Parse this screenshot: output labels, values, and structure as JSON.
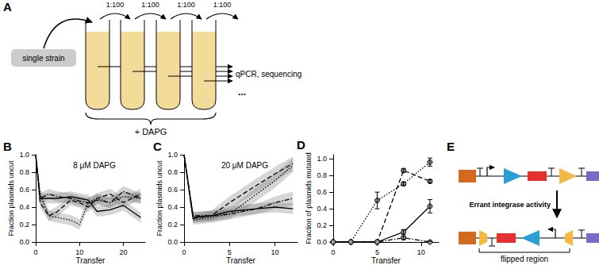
{
  "panel_labels": [
    "A",
    "B",
    "C",
    "D",
    "E"
  ],
  "diagram_a": {
    "start": "single strain",
    "dilution": "1:100",
    "ellipsis": "...",
    "readout": "qPCR, sequencing",
    "treatment": "+ DAPG"
  },
  "diagram_e": {
    "process": "Errant integrase activity",
    "region": "flipped region"
  },
  "chart_data": [
    {
      "type": "line",
      "title": "8 μM DAPG",
      "x_label": "Transfer",
      "y_label": "Fraction plasmids uncut",
      "xlim": [
        0,
        25
      ],
      "xticks": [
        0,
        10,
        20
      ],
      "ylim": [
        0,
        1
      ],
      "yticks": [
        {
          "value": 0,
          "label": "0.0"
        },
        0.2,
        0.4,
        0.6,
        0.8,
        {
          "value": 1,
          "label": "1.0"
        }
      ],
      "grid": false,
      "x": [
        0,
        1,
        3,
        5,
        8,
        10,
        12,
        14,
        17,
        20,
        24
      ],
      "series": [
        {
          "color": "#000000",
          "line_style": "solid",
          "values": [
            1.0,
            0.5,
            0.5,
            0.5,
            0.52,
            0.5,
            0.48,
            0.35,
            0.37,
            0.42,
            0.28
          ],
          "lower": [
            0.97,
            0.44,
            0.44,
            0.44,
            0.46,
            0.44,
            0.42,
            0.29,
            0.31,
            0.36,
            0.22
          ],
          "upper": [
            1.0,
            0.56,
            0.56,
            0.56,
            0.58,
            0.56,
            0.54,
            0.41,
            0.43,
            0.48,
            0.34
          ]
        },
        {
          "color": "#000000",
          "line_style": "dotted",
          "values": [
            1.0,
            0.55,
            0.3,
            0.28,
            0.25,
            0.2,
            0.45,
            0.5,
            0.45,
            0.52,
            0.5
          ],
          "lower": [
            0.97,
            0.49,
            0.24,
            0.22,
            0.19,
            0.14,
            0.39,
            0.44,
            0.39,
            0.46,
            0.44
          ],
          "upper": [
            1.0,
            0.61,
            0.36,
            0.34,
            0.31,
            0.26,
            0.51,
            0.56,
            0.51,
            0.58,
            0.56
          ]
        },
        {
          "color": "#000000",
          "line_style": "dashed",
          "values": [
            1.0,
            0.45,
            0.3,
            0.35,
            0.48,
            0.45,
            0.4,
            0.5,
            0.55,
            0.45,
            0.55
          ],
          "lower": [
            0.97,
            0.39,
            0.24,
            0.29,
            0.42,
            0.39,
            0.34,
            0.44,
            0.49,
            0.39,
            0.49
          ],
          "upper": [
            1.0,
            0.51,
            0.36,
            0.41,
            0.54,
            0.51,
            0.46,
            0.56,
            0.61,
            0.51,
            0.61
          ]
        },
        {
          "color": "#000000",
          "line_style": "dashdot",
          "values": [
            1.0,
            0.5,
            0.55,
            0.52,
            0.5,
            0.47,
            0.45,
            0.48,
            0.45,
            0.58,
            0.5
          ],
          "lower": [
            0.97,
            0.44,
            0.49,
            0.46,
            0.44,
            0.41,
            0.39,
            0.42,
            0.39,
            0.52,
            0.44
          ],
          "upper": [
            1.0,
            0.56,
            0.61,
            0.58,
            0.56,
            0.53,
            0.51,
            0.54,
            0.51,
            0.64,
            0.56
          ]
        }
      ]
    },
    {
      "type": "line",
      "title": "20 μM DAPG",
      "x_label": "Transfer",
      "y_label": "Fraction plasmids uncut",
      "xlim": [
        0,
        12.5
      ],
      "xticks": [
        0,
        5,
        10
      ],
      "ylim": [
        0,
        1
      ],
      "yticks": [
        {
          "value": 0,
          "label": "0.0"
        },
        0.2,
        0.4,
        0.6,
        0.8,
        {
          "value": 1,
          "label": "1.0"
        }
      ],
      "grid": false,
      "x": [
        0,
        1,
        3,
        5,
        8,
        10,
        12
      ],
      "series": [
        {
          "color": "#000000",
          "line_style": "solid",
          "values": [
            1.0,
            0.28,
            0.3,
            0.35,
            0.38,
            0.4,
            0.38
          ],
          "lower": [
            0.97,
            0.22,
            0.24,
            0.29,
            0.32,
            0.34,
            0.32
          ],
          "upper": [
            1.0,
            0.34,
            0.36,
            0.41,
            0.44,
            0.46,
            0.44
          ]
        },
        {
          "color": "#000000",
          "line_style": "dotted",
          "values": [
            1.0,
            0.25,
            0.28,
            0.32,
            0.55,
            0.7,
            0.88
          ],
          "lower": [
            0.97,
            0.2,
            0.22,
            0.26,
            0.47,
            0.62,
            0.8
          ],
          "upper": [
            1.0,
            0.3,
            0.34,
            0.38,
            0.63,
            0.78,
            0.96
          ]
        },
        {
          "color": "#000000",
          "line_style": "dashed",
          "values": [
            1.0,
            0.27,
            0.3,
            0.45,
            0.65,
            0.78,
            0.9
          ],
          "lower": [
            0.97,
            0.22,
            0.24,
            0.38,
            0.57,
            0.7,
            0.82
          ],
          "upper": [
            1.0,
            0.32,
            0.36,
            0.52,
            0.73,
            0.86,
            0.98
          ]
        },
        {
          "color": "#000000",
          "line_style": "dashdot",
          "values": [
            1.0,
            0.3,
            0.3,
            0.32,
            0.38,
            0.45,
            0.5
          ],
          "lower": [
            0.97,
            0.25,
            0.24,
            0.26,
            0.32,
            0.38,
            0.42
          ],
          "upper": [
            1.0,
            0.35,
            0.36,
            0.38,
            0.44,
            0.52,
            0.58
          ]
        }
      ]
    },
    {
      "type": "line",
      "x_label": "Transfer",
      "y_label": "Fraction of plasmids mutated",
      "xlim": [
        0,
        12
      ],
      "xticks": [
        0,
        5,
        10
      ],
      "ylim": [
        0,
        1.05
      ],
      "yticks": [
        {
          "value": 0,
          "label": "0.0"
        },
        0.2,
        0.4,
        0.6,
        0.8,
        {
          "value": 1,
          "label": "1.0"
        }
      ],
      "grid": false,
      "marker": "circle",
      "x": [
        0,
        2,
        5,
        8,
        11
      ],
      "series": [
        {
          "color": "#000000",
          "line_style": "dotted",
          "values": [
            0,
            0,
            0.5,
            0.7,
            0.96
          ],
          "error": [
            0,
            0,
            0.1,
            0.02,
            0.05
          ]
        },
        {
          "color": "#000000",
          "line_style": "dashed",
          "values": [
            0,
            0,
            0,
            0.86,
            0.73
          ],
          "error": [
            0,
            0,
            0,
            0.02,
            0.02
          ]
        },
        {
          "color": "#000000",
          "line_style": "solid",
          "values": [
            0,
            0,
            0,
            0.12,
            0.43
          ],
          "error": [
            0,
            0,
            0,
            0.03,
            0.08
          ]
        },
        {
          "color": "#000000",
          "line_style": "dashdot",
          "values": [
            0,
            0,
            0,
            0.05,
            0
          ],
          "error": [
            0,
            0,
            0,
            0.02,
            0.01
          ]
        }
      ]
    }
  ]
}
